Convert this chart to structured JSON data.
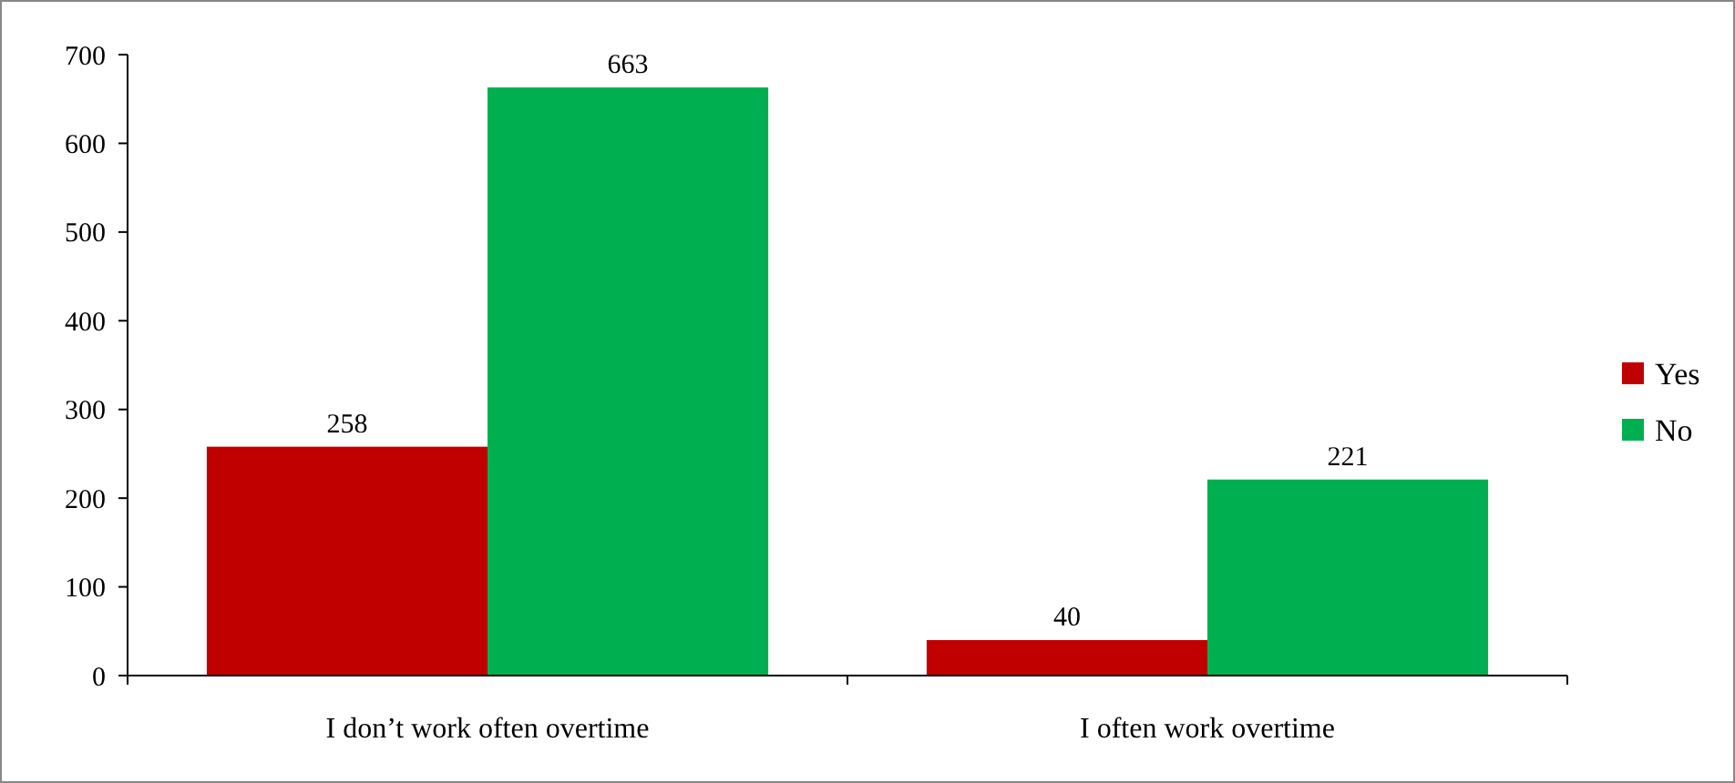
{
  "chart_data": {
    "type": "bar",
    "categories": [
      "I don’t work often overtime",
      "I often work overtime"
    ],
    "series": [
      {
        "name": "Yes",
        "color": "#c00000",
        "values": [
          258,
          40
        ]
      },
      {
        "name": "No",
        "color": "#00b050",
        "values": [
          663,
          221
        ]
      }
    ],
    "ylim": [
      0,
      700
    ],
    "yticks": [
      0,
      100,
      200,
      300,
      400,
      500,
      600,
      700
    ],
    "grid": false,
    "legend": "right",
    "data_labels": true
  }
}
